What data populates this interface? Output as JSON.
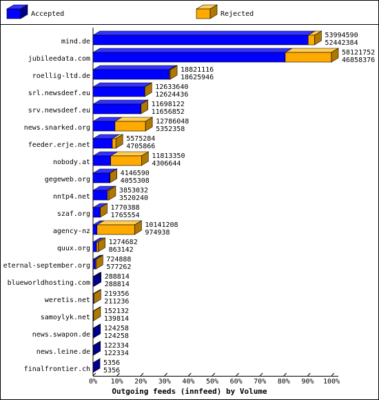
{
  "chart_data": {
    "type": "bar3d-stacked",
    "xlabel": "Outgoing feeds (innfeed) by Volume",
    "categories": [
      "mind.de",
      "jubileedata.com",
      "roellig-ltd.de",
      "srl.newsdeef.eu",
      "srv.newsdeef.eu",
      "news.snarked.org",
      "feeder.erje.net",
      "nobody.at",
      "gegeweb.org",
      "nntp4.net",
      "szaf.org",
      "agency-nz",
      "quux.org",
      "eternal-september.org",
      "blueworldhosting.com",
      "weretis.net",
      "samoylyk.net",
      "news.swapon.de",
      "news.leine.de",
      "finalfrontier.ch"
    ],
    "offered": [
      53994590,
      58121752,
      18821116,
      12633640,
      11698122,
      12786048,
      5575284,
      11813350,
      4146590,
      3853032,
      1770388,
      10141208,
      1274682,
      724888,
      288814,
      219356,
      152132,
      124258,
      122334,
      5356
    ],
    "series": [
      {
        "name": "Accepted",
        "color": "#0000ff",
        "values": [
          52442384,
          46858376,
          18625946,
          12624436,
          11656852,
          5352358,
          4705866,
          4306644,
          4055308,
          3520240,
          1765554,
          974938,
          863142,
          577262,
          288814,
          211236,
          139814,
          124258,
          122334,
          5356
        ]
      },
      {
        "name": "Rejected",
        "color": "#ffaa00"
      }
    ],
    "xlim": [
      0,
      100
    ],
    "xticks": [
      {
        "value": 0,
        "label": "0%"
      },
      {
        "value": 10,
        "label": "10%"
      },
      {
        "value": 20,
        "label": "20%"
      },
      {
        "value": 30,
        "label": "30%"
      },
      {
        "value": 40,
        "label": "40%"
      },
      {
        "value": 50,
        "label": "50%"
      },
      {
        "value": 60,
        "label": "60%"
      },
      {
        "value": 70,
        "label": "70%"
      },
      {
        "value": 80,
        "label": "80%"
      },
      {
        "value": 90,
        "label": "90%"
      },
      {
        "value": 100,
        "label": "100%"
      }
    ]
  }
}
